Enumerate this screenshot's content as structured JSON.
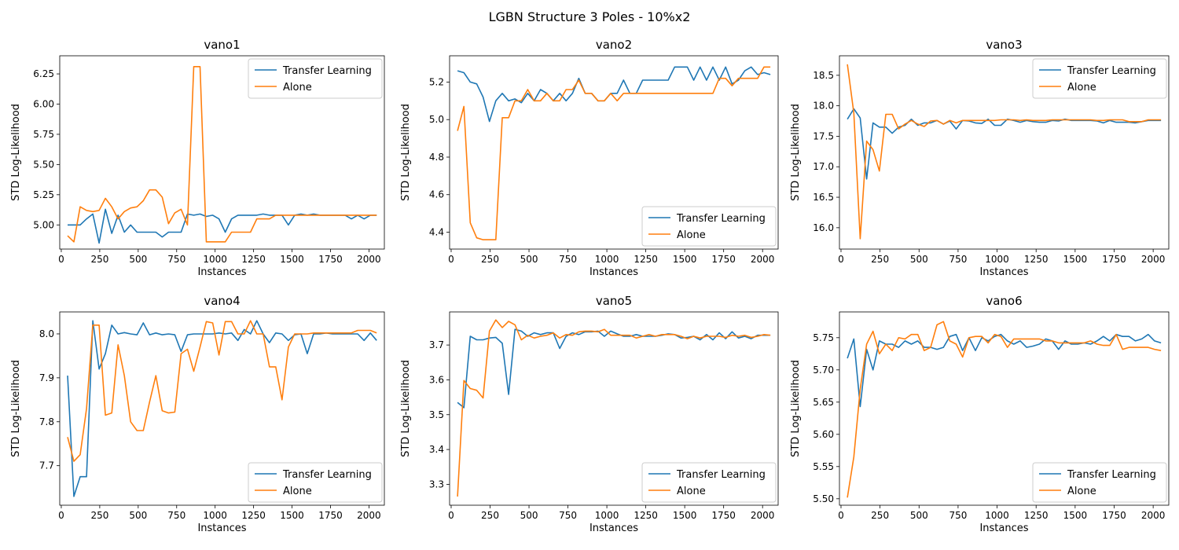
{
  "suptitle": "LGBN Structure 3 Poles - 10%x2",
  "colors": {
    "transfer": "#1f77b4",
    "alone": "#ff7f0e"
  },
  "chart_data": [
    {
      "type": "line",
      "title": "vano1",
      "xlabel": "Instances",
      "ylabel": "STD Log-Likelihood",
      "xlim": [
        -10,
        2100
      ],
      "ylim": [
        4.8,
        6.4
      ],
      "xticks": [
        0,
        250,
        500,
        750,
        1000,
        1250,
        1500,
        1750,
        2000
      ],
      "yticks": [
        5.0,
        5.25,
        5.5,
        5.75,
        6.0,
        6.25
      ],
      "legend_loc": "upper right",
      "x": [
        41,
        82,
        123,
        164,
        205,
        246,
        287,
        328,
        369,
        410,
        451,
        492,
        533,
        574,
        615,
        656,
        697,
        738,
        779,
        820,
        861,
        902,
        943,
        984,
        1025,
        1066,
        1107,
        1148,
        1189,
        1230,
        1271,
        1312,
        1353,
        1394,
        1435,
        1476,
        1517,
        1558,
        1599,
        1640,
        1681,
        1722,
        1763,
        1804,
        1845,
        1886,
        1927,
        1968,
        2009,
        2050
      ],
      "series": [
        {
          "name": "Transfer Learning",
          "color_key": "transfer",
          "values": [
            5.0,
            5.0,
            5.0,
            5.05,
            5.09,
            4.85,
            5.13,
            4.93,
            5.08,
            4.94,
            5.0,
            4.94,
            4.94,
            4.94,
            4.94,
            4.9,
            4.94,
            4.94,
            4.94,
            5.09,
            5.08,
            5.09,
            5.07,
            5.08,
            5.05,
            4.94,
            5.05,
            5.08,
            5.08,
            5.08,
            5.08,
            5.09,
            5.08,
            5.08,
            5.08,
            5.0,
            5.08,
            5.09,
            5.08,
            5.09,
            5.08,
            5.08,
            5.08,
            5.08,
            5.08,
            5.05,
            5.08,
            5.05,
            5.08,
            5.08
          ]
        },
        {
          "name": "Alone",
          "color_key": "alone",
          "values": [
            4.91,
            4.86,
            5.15,
            5.12,
            5.11,
            5.12,
            5.22,
            5.15,
            5.05,
            5.11,
            5.14,
            5.15,
            5.2,
            5.29,
            5.29,
            5.23,
            5.01,
            5.1,
            5.13,
            5.0,
            6.31,
            6.31,
            4.86,
            4.86,
            4.86,
            4.86,
            4.94,
            4.94,
            4.94,
            4.94,
            5.05,
            5.05,
            5.05,
            5.08,
            5.08,
            5.08,
            5.08,
            5.08,
            5.08,
            5.08,
            5.08,
            5.08,
            5.08,
            5.08,
            5.08,
            5.08,
            5.08,
            5.08,
            5.08,
            5.08
          ]
        }
      ]
    },
    {
      "type": "line",
      "title": "vano2",
      "xlabel": "Instances",
      "ylabel": "STD Log-Likelihood",
      "xlim": [
        -10,
        2100
      ],
      "ylim": [
        4.31,
        5.34
      ],
      "xticks": [
        0,
        250,
        500,
        750,
        1000,
        1250,
        1500,
        1750,
        2000
      ],
      "yticks": [
        4.4,
        4.6,
        4.8,
        5.0,
        5.2
      ],
      "legend_loc": "lower right",
      "x": [
        41,
        82,
        123,
        164,
        205,
        246,
        287,
        328,
        369,
        410,
        451,
        492,
        533,
        574,
        615,
        656,
        697,
        738,
        779,
        820,
        861,
        902,
        943,
        984,
        1025,
        1066,
        1107,
        1148,
        1189,
        1230,
        1271,
        1312,
        1353,
        1394,
        1435,
        1476,
        1517,
        1558,
        1599,
        1640,
        1681,
        1722,
        1763,
        1804,
        1845,
        1886,
        1927,
        1968,
        2009,
        2050
      ],
      "series": [
        {
          "name": "Transfer Learning",
          "color_key": "transfer",
          "values": [
            5.26,
            5.25,
            5.2,
            5.19,
            5.12,
            4.99,
            5.1,
            5.14,
            5.1,
            5.11,
            5.09,
            5.14,
            5.1,
            5.16,
            5.14,
            5.1,
            5.14,
            5.1,
            5.14,
            5.22,
            5.14,
            5.14,
            5.1,
            5.1,
            5.14,
            5.14,
            5.21,
            5.14,
            5.14,
            5.21,
            5.21,
            5.21,
            5.21,
            5.21,
            5.28,
            5.28,
            5.28,
            5.21,
            5.28,
            5.21,
            5.28,
            5.21,
            5.28,
            5.19,
            5.21,
            5.26,
            5.28,
            5.24,
            5.25,
            5.24
          ]
        },
        {
          "name": "Alone",
          "color_key": "alone",
          "values": [
            4.94,
            5.07,
            4.45,
            4.37,
            4.36,
            4.36,
            4.36,
            5.01,
            5.01,
            5.1,
            5.1,
            5.16,
            5.1,
            5.1,
            5.14,
            5.1,
            5.1,
            5.16,
            5.16,
            5.21,
            5.14,
            5.14,
            5.1,
            5.1,
            5.14,
            5.1,
            5.14,
            5.14,
            5.14,
            5.14,
            5.14,
            5.14,
            5.14,
            5.14,
            5.14,
            5.14,
            5.14,
            5.14,
            5.14,
            5.14,
            5.14,
            5.22,
            5.22,
            5.18,
            5.22,
            5.22,
            5.22,
            5.22,
            5.28,
            5.28
          ]
        }
      ]
    },
    {
      "type": "line",
      "title": "vano3",
      "xlabel": "Instances",
      "ylabel": "STD Log-Likelihood",
      "xlim": [
        -10,
        2100
      ],
      "ylim": [
        15.65,
        18.82
      ],
      "xticks": [
        0,
        250,
        500,
        750,
        1000,
        1250,
        1500,
        1750,
        2000
      ],
      "yticks": [
        16.0,
        16.5,
        17.0,
        17.5,
        18.0,
        18.5
      ],
      "legend_loc": "upper right",
      "x": [
        41,
        82,
        123,
        164,
        205,
        246,
        287,
        328,
        369,
        410,
        451,
        492,
        533,
        574,
        615,
        656,
        697,
        738,
        779,
        820,
        861,
        902,
        943,
        984,
        1025,
        1066,
        1107,
        1148,
        1189,
        1230,
        1271,
        1312,
        1353,
        1394,
        1435,
        1476,
        1517,
        1558,
        1599,
        1640,
        1681,
        1722,
        1763,
        1804,
        1845,
        1886,
        1927,
        1968,
        2009,
        2050
      ],
      "series": [
        {
          "name": "Transfer Learning",
          "color_key": "transfer",
          "values": [
            17.78,
            17.95,
            17.8,
            16.8,
            17.72,
            17.65,
            17.65,
            17.55,
            17.65,
            17.68,
            17.78,
            17.68,
            17.72,
            17.72,
            17.76,
            17.7,
            17.75,
            17.62,
            17.76,
            17.75,
            17.72,
            17.71,
            17.78,
            17.68,
            17.68,
            17.78,
            17.76,
            17.73,
            17.76,
            17.74,
            17.73,
            17.73,
            17.76,
            17.75,
            17.78,
            17.76,
            17.76,
            17.76,
            17.76,
            17.75,
            17.72,
            17.76,
            17.73,
            17.73,
            17.73,
            17.72,
            17.74,
            17.76,
            17.76,
            17.76
          ]
        },
        {
          "name": "Alone",
          "color_key": "alone",
          "values": [
            18.68,
            17.88,
            15.82,
            17.42,
            17.28,
            16.93,
            17.86,
            17.86,
            17.62,
            17.7,
            17.76,
            17.7,
            17.66,
            17.75,
            17.76,
            17.7,
            17.76,
            17.72,
            17.76,
            17.76,
            17.76,
            17.76,
            17.76,
            17.76,
            17.77,
            17.77,
            17.77,
            17.76,
            17.77,
            17.76,
            17.76,
            17.76,
            17.77,
            17.77,
            17.77,
            17.77,
            17.77,
            17.77,
            17.77,
            17.76,
            17.76,
            17.77,
            17.77,
            17.77,
            17.74,
            17.74,
            17.74,
            17.77,
            17.77,
            17.77
          ]
        }
      ]
    },
    {
      "type": "line",
      "title": "vano4",
      "xlabel": "Instances",
      "ylabel": "STD Log-Likelihood",
      "xlim": [
        -10,
        2100
      ],
      "ylim": [
        7.61,
        8.05
      ],
      "xticks": [
        0,
        250,
        500,
        750,
        1000,
        1250,
        1500,
        1750,
        2000
      ],
      "yticks": [
        7.7,
        7.8,
        7.9,
        8.0
      ],
      "legend_loc": "lower right",
      "x": [
        41,
        82,
        123,
        164,
        205,
        246,
        287,
        328,
        369,
        410,
        451,
        492,
        533,
        574,
        615,
        656,
        697,
        738,
        779,
        820,
        861,
        902,
        943,
        984,
        1025,
        1066,
        1107,
        1148,
        1189,
        1230,
        1271,
        1312,
        1353,
        1394,
        1435,
        1476,
        1517,
        1558,
        1599,
        1640,
        1681,
        1722,
        1763,
        1804,
        1845,
        1886,
        1927,
        1968,
        2009,
        2050
      ],
      "series": [
        {
          "name": "Transfer Learning",
          "color_key": "transfer",
          "values": [
            7.905,
            7.63,
            7.675,
            7.675,
            8.03,
            7.92,
            7.955,
            8.02,
            8.0,
            8.003,
            8.0,
            7.998,
            8.025,
            7.998,
            8.002,
            7.998,
            8.0,
            7.998,
            7.96,
            7.998,
            8.0,
            8.0,
            8.0,
            8.0,
            8.002,
            8.0,
            8.002,
            7.985,
            8.01,
            8.0,
            8.03,
            8.0,
            7.98,
            8.002,
            8.0,
            7.985,
            7.998,
            8.0,
            7.955,
            8.0,
            8.0,
            8.002,
            8.0,
            8.0,
            8.0,
            8.0,
            8.0,
            7.985,
            8.002,
            7.985
          ]
        },
        {
          "name": "Alone",
          "color_key": "alone",
          "values": [
            7.765,
            7.71,
            7.725,
            7.83,
            8.02,
            8.02,
            7.815,
            7.82,
            7.975,
            7.905,
            7.8,
            7.78,
            7.78,
            7.845,
            7.905,
            7.825,
            7.82,
            7.822,
            7.955,
            7.965,
            7.915,
            7.97,
            8.028,
            8.025,
            7.952,
            8.028,
            8.028,
            8.0,
            8.0,
            8.03,
            8.0,
            8.0,
            7.925,
            7.925,
            7.85,
            7.97,
            8.0,
            8.0,
            8.0,
            8.002,
            8.002,
            8.002,
            8.002,
            8.002,
            8.002,
            8.002,
            8.008,
            8.008,
            8.008,
            8.002
          ]
        }
      ]
    },
    {
      "type": "line",
      "title": "vano5",
      "xlabel": "Instances",
      "ylabel": "STD Log-Likelihood",
      "xlim": [
        -10,
        2100
      ],
      "ylim": [
        3.24,
        3.795
      ],
      "xticks": [
        0,
        250,
        500,
        750,
        1000,
        1250,
        1500,
        1750,
        2000
      ],
      "yticks": [
        3.3,
        3.4,
        3.5,
        3.6,
        3.7
      ],
      "legend_loc": "lower right",
      "x": [
        41,
        82,
        123,
        164,
        205,
        246,
        287,
        328,
        369,
        410,
        451,
        492,
        533,
        574,
        615,
        656,
        697,
        738,
        779,
        820,
        861,
        902,
        943,
        984,
        1025,
        1066,
        1107,
        1148,
        1189,
        1230,
        1271,
        1312,
        1353,
        1394,
        1435,
        1476,
        1517,
        1558,
        1599,
        1640,
        1681,
        1722,
        1763,
        1804,
        1845,
        1886,
        1927,
        1968,
        2009,
        2050
      ],
      "series": [
        {
          "name": "Transfer Learning",
          "color_key": "transfer",
          "values": [
            3.535,
            3.52,
            3.725,
            3.715,
            3.715,
            3.72,
            3.722,
            3.705,
            3.558,
            3.745,
            3.74,
            3.725,
            3.735,
            3.73,
            3.735,
            3.735,
            3.69,
            3.725,
            3.735,
            3.73,
            3.738,
            3.738,
            3.74,
            3.725,
            3.74,
            3.732,
            3.725,
            3.725,
            3.73,
            3.725,
            3.725,
            3.725,
            3.728,
            3.732,
            3.73,
            3.72,
            3.722,
            3.725,
            3.715,
            3.73,
            3.715,
            3.735,
            3.718,
            3.738,
            3.72,
            3.725,
            3.718,
            3.728,
            3.728,
            3.728
          ]
        },
        {
          "name": "Alone",
          "color_key": "alone",
          "values": [
            3.265,
            3.598,
            3.575,
            3.57,
            3.548,
            3.74,
            3.772,
            3.75,
            3.768,
            3.758,
            3.715,
            3.728,
            3.72,
            3.725,
            3.728,
            3.735,
            3.72,
            3.73,
            3.728,
            3.738,
            3.74,
            3.74,
            3.738,
            3.745,
            3.728,
            3.728,
            3.728,
            3.728,
            3.72,
            3.725,
            3.73,
            3.725,
            3.73,
            3.73,
            3.73,
            3.725,
            3.718,
            3.725,
            3.72,
            3.725,
            3.725,
            3.725,
            3.722,
            3.728,
            3.725,
            3.728,
            3.722,
            3.725,
            3.73,
            3.728
          ]
        }
      ]
    },
    {
      "type": "line",
      "title": "vano6",
      "xlabel": "Instances",
      "ylabel": "STD Log-Likelihood",
      "xlim": [
        -10,
        2100
      ],
      "ylim": [
        5.49,
        5.79
      ],
      "xticks": [
        0,
        250,
        500,
        750,
        1000,
        1250,
        1500,
        1750,
        2000
      ],
      "yticks": [
        5.5,
        5.55,
        5.6,
        5.65,
        5.7,
        5.75
      ],
      "legend_loc": "lower right",
      "x": [
        41,
        82,
        123,
        164,
        205,
        246,
        287,
        328,
        369,
        410,
        451,
        492,
        533,
        574,
        615,
        656,
        697,
        738,
        779,
        820,
        861,
        902,
        943,
        984,
        1025,
        1066,
        1107,
        1148,
        1189,
        1230,
        1271,
        1312,
        1353,
        1394,
        1435,
        1476,
        1517,
        1558,
        1599,
        1640,
        1681,
        1722,
        1763,
        1804,
        1845,
        1886,
        1927,
        1968,
        2009,
        2050
      ],
      "series": [
        {
          "name": "Transfer Learning",
          "color_key": "transfer",
          "values": [
            5.718,
            5.748,
            5.643,
            5.732,
            5.7,
            5.745,
            5.74,
            5.74,
            5.735,
            5.745,
            5.74,
            5.745,
            5.735,
            5.735,
            5.732,
            5.735,
            5.752,
            5.755,
            5.73,
            5.75,
            5.73,
            5.75,
            5.745,
            5.752,
            5.755,
            5.745,
            5.74,
            5.745,
            5.735,
            5.737,
            5.74,
            5.748,
            5.745,
            5.732,
            5.745,
            5.74,
            5.74,
            5.742,
            5.74,
            5.745,
            5.752,
            5.745,
            5.755,
            5.752,
            5.752,
            5.745,
            5.748,
            5.755,
            5.745,
            5.742
          ]
        },
        {
          "name": "Alone",
          "color_key": "alone",
          "values": [
            5.502,
            5.565,
            5.67,
            5.74,
            5.76,
            5.725,
            5.74,
            5.73,
            5.75,
            5.748,
            5.755,
            5.755,
            5.73,
            5.735,
            5.77,
            5.775,
            5.745,
            5.74,
            5.72,
            5.75,
            5.752,
            5.752,
            5.742,
            5.755,
            5.752,
            5.735,
            5.748,
            5.748,
            5.748,
            5.748,
            5.748,
            5.745,
            5.745,
            5.742,
            5.742,
            5.742,
            5.742,
            5.742,
            5.745,
            5.74,
            5.738,
            5.738,
            5.755,
            5.732,
            5.735,
            5.735,
            5.735,
            5.735,
            5.732,
            5.73
          ]
        }
      ]
    }
  ]
}
